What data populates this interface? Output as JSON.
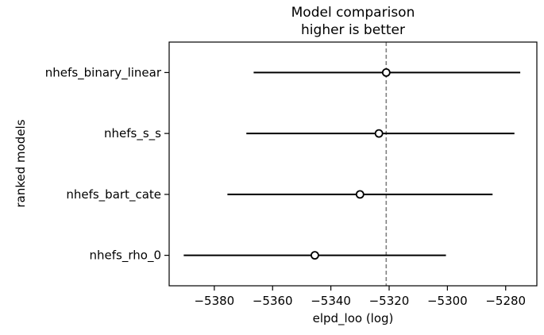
{
  "figure": {
    "title_line1": "Model comparison",
    "title_line2": "higher is better"
  },
  "chart_data": {
    "type": "scatter",
    "title": "Model comparison\nhigher is better",
    "xlabel": "elpd_loo (log)",
    "ylabel": "ranked models",
    "grid": false,
    "legend": "none",
    "xlim": [
      -5395.5,
      -5269.3
    ],
    "x_tick_values": [
      -5380,
      -5360,
      -5340,
      -5320,
      -5300,
      -5280
    ],
    "x_tick_labels": [
      "−5380",
      "−5360",
      "−5340",
      "−5320",
      "−5300",
      "−5280"
    ],
    "reference_line": {
      "x": -5321,
      "style": "dashed",
      "color": "#808080"
    },
    "series": [
      {
        "name": "nhefs_binary_linear",
        "elpd_loo": -5321.0,
        "ci_low": -5366.5,
        "ci_high": -5275.0
      },
      {
        "name": "nhefs_s_s",
        "elpd_loo": -5323.5,
        "ci_low": -5369.0,
        "ci_high": -5277.0
      },
      {
        "name": "nhefs_bart_cate",
        "elpd_loo": -5330.0,
        "ci_low": -5375.5,
        "ci_high": -5284.5
      },
      {
        "name": "nhefs_rho_0",
        "elpd_loo": -5345.5,
        "ci_low": -5390.5,
        "ci_high": -5300.5
      }
    ],
    "colors": {
      "errorbar_line": "#000000",
      "marker_fill": "#ffffff",
      "marker_stroke": "#000000",
      "reference_line": "#808080",
      "axis": "#000000",
      "text": "#000000"
    }
  }
}
